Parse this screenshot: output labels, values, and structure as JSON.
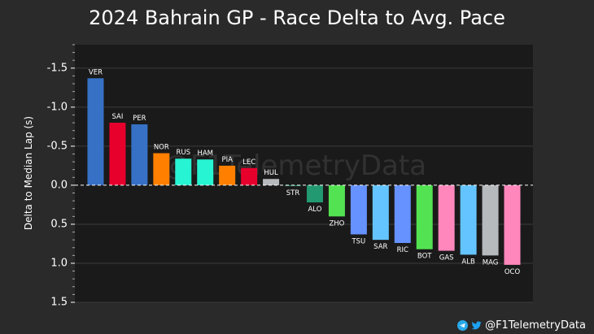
{
  "chart_data": {
    "type": "bar",
    "title": "2024 Bahrain GP - Race Delta to Avg. Pace",
    "xlabel": "",
    "ylabel": "Delta to Median Lap (s)",
    "ylim": [
      -1.8,
      1.5
    ],
    "y_inverted": true,
    "grid": true,
    "yticks": [
      -1.5,
      -1.0,
      -0.5,
      0.0,
      0.5,
      1.0,
      1.5
    ],
    "ytick_labels": [
      "-1.5",
      "-1.0",
      "-0.5",
      "0.0",
      "0.5",
      "1.0",
      "1.5"
    ],
    "reference_line": 0.0,
    "watermark": "@F1TelemetryData",
    "categories": [
      "VER",
      "SAI",
      "PER",
      "NOR",
      "RUS",
      "HAM",
      "PIA",
      "LEC",
      "HUL",
      "STR",
      "ALO",
      "ZHO",
      "TSU",
      "SAR",
      "RIC",
      "BOT",
      "GAS",
      "ALB",
      "MAG",
      "OCO"
    ],
    "values": [
      -1.37,
      -0.8,
      -0.78,
      -0.41,
      -0.34,
      -0.33,
      -0.25,
      -0.22,
      -0.08,
      0.01,
      0.22,
      0.4,
      0.63,
      0.7,
      0.74,
      0.82,
      0.84,
      0.89,
      0.9,
      1.02
    ],
    "colors": [
      "#3671c6",
      "#e8002d",
      "#3671c6",
      "#ff8000",
      "#27f4d2",
      "#27f4d2",
      "#ff8000",
      "#e8002d",
      "#b6babd",
      "#229971",
      "#229971",
      "#52e252",
      "#6692ff",
      "#64c4ff",
      "#6692ff",
      "#52e252",
      "#ff87bc",
      "#64c4ff",
      "#b6babd",
      "#ff87bc"
    ]
  },
  "footer": {
    "handle": "@F1TelemetryData",
    "telegram_icon": "telegram-icon",
    "twitter_icon": "twitter-icon"
  }
}
